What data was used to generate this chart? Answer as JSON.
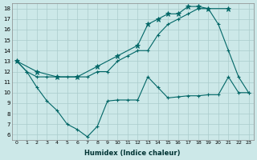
{
  "xlabel": "Humidex (Indice chaleur)",
  "background_color": "#cce8e8",
  "grid_color": "#aacccc",
  "line_color": "#006666",
  "xlim": [
    -0.5,
    23.5
  ],
  "ylim": [
    5.5,
    18.5
  ],
  "xticks": [
    0,
    1,
    2,
    3,
    4,
    5,
    6,
    7,
    8,
    9,
    10,
    11,
    12,
    13,
    14,
    15,
    16,
    17,
    18,
    19,
    20,
    21,
    22,
    23
  ],
  "yticks": [
    6,
    7,
    8,
    9,
    10,
    11,
    12,
    13,
    14,
    15,
    16,
    17,
    18
  ],
  "line1_x": [
    0,
    1,
    2,
    3,
    4,
    5,
    6,
    7,
    8,
    9,
    10,
    11,
    12,
    13,
    14,
    15,
    16,
    17,
    18,
    19,
    20,
    21,
    22,
    23
  ],
  "line1_y": [
    13,
    12,
    10.5,
    9.2,
    8.3,
    7.0,
    6.5,
    5.8,
    6.8,
    9.2,
    9.3,
    9.3,
    9.3,
    11.5,
    10.5,
    9.5,
    9.6,
    9.7,
    9.7,
    9.8,
    9.8,
    11.5,
    10.0,
    10.0
  ],
  "line2_x": [
    0,
    1,
    2,
    3,
    4,
    5,
    6,
    7,
    8,
    9,
    10,
    11,
    12,
    13,
    14,
    15,
    16,
    17,
    18,
    19,
    20,
    21,
    22,
    23
  ],
  "line2_y": [
    13,
    12,
    11.5,
    11.5,
    11.5,
    11.5,
    11.5,
    11.5,
    12.0,
    12.0,
    13.0,
    13.5,
    14.0,
    14.0,
    15.5,
    16.5,
    17.0,
    17.5,
    18.0,
    18.0,
    16.5,
    14.0,
    11.5,
    10.0
  ],
  "line3_x": [
    0,
    2,
    4,
    6,
    8,
    10,
    12,
    13,
    14,
    15,
    16,
    17,
    18,
    19,
    21
  ],
  "line3_y": [
    13,
    12,
    11.5,
    11.5,
    12.5,
    13.5,
    14.5,
    16.5,
    17.0,
    17.5,
    17.5,
    18.2,
    18.2,
    18.0,
    18.0
  ]
}
